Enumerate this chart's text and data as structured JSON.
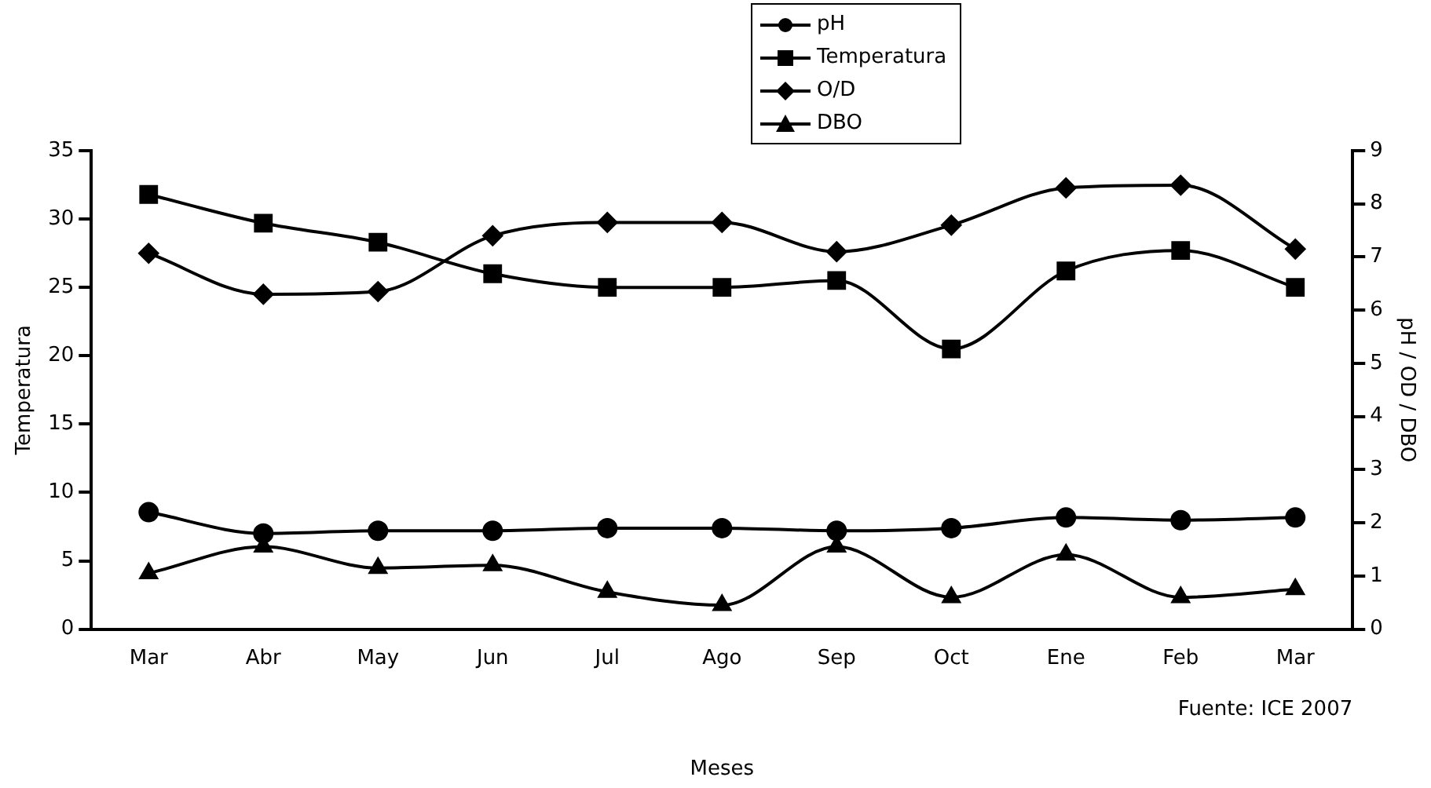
{
  "chart_data": {
    "type": "line",
    "xlabel": "Meses",
    "ylabel": "Temperatura",
    "y2label": "pH / OD / DBO",
    "categories": [
      "Mar",
      "Abr",
      "May",
      "Jun",
      "Jul",
      "Ago",
      "Sep",
      "Oct",
      "Ene",
      "Feb",
      "Mar"
    ],
    "series": [
      {
        "name": "pH",
        "color": "#000000",
        "marker": "circle",
        "axis": "y2",
        "values": [
          2.2,
          1.8,
          1.85,
          1.85,
          1.9,
          1.9,
          1.85,
          1.9,
          2.1,
          2.05,
          2.1
        ]
      },
      {
        "name": "Temperatura",
        "color": "#000000",
        "marker": "square",
        "axis": "y",
        "values": [
          31.8,
          29.7,
          28.3,
          26,
          25,
          25,
          25.5,
          20.5,
          26.2,
          27.7,
          25
        ]
      },
      {
        "name": "O/D",
        "color": "#000000",
        "marker": "diamond",
        "axis": "y2",
        "values": [
          7.07,
          6.3,
          6.35,
          7.4,
          7.65,
          7.65,
          7.1,
          7.6,
          8.3,
          8.35,
          7.15
        ]
      },
      {
        "name": "DBO",
        "color": "#000000",
        "marker": "triangle",
        "axis": "y2",
        "values": [
          1.05,
          1.55,
          1.15,
          1.2,
          0.7,
          0.45,
          1.55,
          0.6,
          1.4,
          0.6,
          0.75
        ]
      }
    ],
    "ylim": [
      0,
      35
    ],
    "yticks": [
      0,
      5,
      10,
      15,
      20,
      25,
      30,
      35
    ],
    "y2lim": [
      0,
      9
    ],
    "y2ticks": [
      0,
      1,
      2,
      3,
      4,
      5,
      6,
      7,
      8,
      9
    ],
    "grid": false,
    "legend": "top",
    "annotations": [
      "Fuente: ICE 2007"
    ]
  }
}
